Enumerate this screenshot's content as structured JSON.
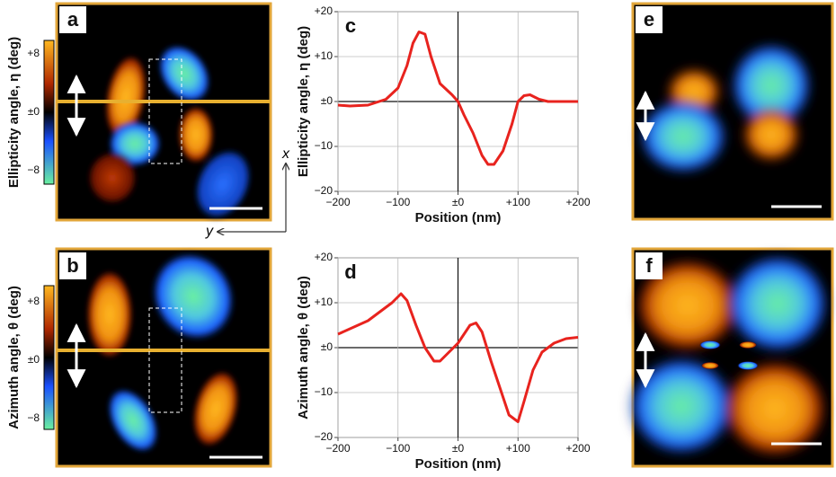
{
  "chart_data": [
    {
      "type": "line",
      "panel": "c",
      "xlabel": "Position (nm)",
      "ylabel": "Ellipticity angle, η (deg)",
      "color": "#e8231e",
      "x": [
        -200,
        -180,
        -150,
        -120,
        -100,
        -85,
        -75,
        -65,
        -55,
        -45,
        -30,
        -10,
        0,
        10,
        25,
        40,
        50,
        60,
        75,
        90,
        100,
        110,
        120,
        135,
        150,
        200
      ],
      "values": [
        -0.8,
        -1,
        -0.8,
        0.5,
        3,
        8,
        13,
        15.5,
        15,
        10,
        4,
        1.5,
        0,
        -3,
        -7,
        -12,
        -14,
        -14,
        -11,
        -5,
        0,
        1.3,
        1.5,
        0.5,
        0,
        0
      ],
      "xlim": [
        -200,
        200
      ],
      "ylim": [
        -20,
        20
      ],
      "grid": true,
      "xticks": [
        {
          "value": -200,
          "label": "−200"
        },
        {
          "value": -100,
          "label": "−100"
        },
        {
          "value": 0,
          "label": "±0"
        },
        {
          "value": 100,
          "label": "+100"
        },
        {
          "value": 200,
          "label": "+200"
        }
      ],
      "yticks": [
        {
          "value": 20,
          "label": "+20"
        },
        {
          "value": 10,
          "label": "+10"
        },
        {
          "value": 0,
          "label": "±0"
        },
        {
          "value": -10,
          "label": "−10"
        },
        {
          "value": -20,
          "label": "−20"
        }
      ]
    },
    {
      "type": "line",
      "panel": "d",
      "xlabel": "Position (nm)",
      "ylabel": "Azimuth angle, θ (deg)",
      "color": "#e8231e",
      "x": [
        -200,
        -150,
        -110,
        -95,
        -85,
        -70,
        -55,
        -40,
        -30,
        -15,
        0,
        20,
        30,
        40,
        55,
        70,
        85,
        100,
        110,
        125,
        140,
        160,
        180,
        200
      ],
      "values": [
        3,
        6,
        10,
        12,
        10.5,
        5,
        0,
        -3,
        -3,
        -1,
        1,
        5,
        5.5,
        3.5,
        -3,
        -9,
        -15,
        -16.5,
        -12,
        -5,
        -1,
        1,
        2,
        2.3
      ],
      "xlim": [
        -200,
        200
      ],
      "ylim": [
        -20,
        20
      ],
      "grid": true,
      "xticks": [
        {
          "value": -200,
          "label": "−200"
        },
        {
          "value": -100,
          "label": "−100"
        },
        {
          "value": 0,
          "label": "±0"
        },
        {
          "value": 100,
          "label": "+100"
        },
        {
          "value": 200,
          "label": "+200"
        }
      ],
      "yticks": [
        {
          "value": 20,
          "label": "+20"
        },
        {
          "value": 10,
          "label": "+10"
        },
        {
          "value": 0,
          "label": "±0"
        },
        {
          "value": -10,
          "label": "−10"
        },
        {
          "value": -20,
          "label": "−20"
        }
      ]
    }
  ],
  "panels": [
    {
      "label": "a",
      "axis_label": "Ellipticity angle, η (deg)",
      "colorbar_ticks": [
        "+8",
        "±0",
        "−8"
      ]
    },
    {
      "label": "b",
      "axis_label": "Azimuth angle, θ (deg)",
      "colorbar_ticks": [
        "+8",
        "±0",
        "−8"
      ]
    },
    {
      "label": "e"
    },
    {
      "label": "f"
    }
  ],
  "axes_labels": {
    "x": "x",
    "y": "y"
  }
}
